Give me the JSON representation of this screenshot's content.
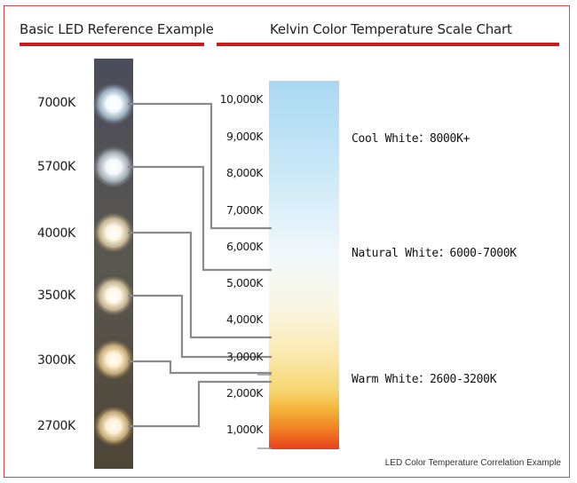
{
  "left_title": "Basic LED Reference Example",
  "right_title": "Kelvin Color Temperature Scale Chart",
  "led_labels": [
    "7000K",
    "5700K",
    "4000K",
    "3500K",
    "3000K",
    "2700K"
  ],
  "scale_ticks": [
    "10,000K",
    "9,000K",
    "8,000K",
    "7,000K",
    "6,000K",
    "5,000K",
    "4,000K",
    "3,000K",
    "2,000K",
    "1,000K"
  ],
  "annotations": {
    "cool": "Cool White：8000K+",
    "natural": "Natural White：6000-7000K",
    "warm": "Warm White：2600-3200K"
  },
  "caption": "LED Color Temperature Correlation Example",
  "colors": {
    "accent_red": "#d01a1a",
    "connector": "#8a8a8a",
    "strip": "#3b3a3e"
  }
}
